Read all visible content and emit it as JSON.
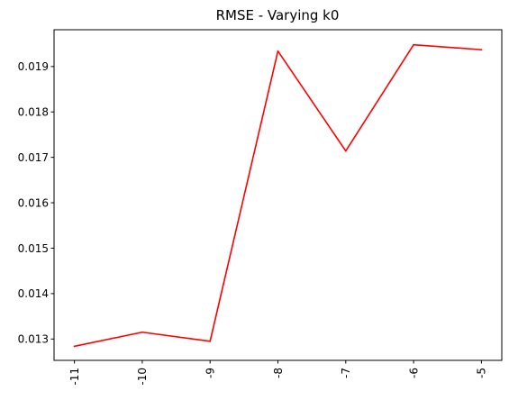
{
  "chart_data": {
    "type": "line",
    "title": "RMSE - Varying k0",
    "xlabel": "",
    "ylabel": "",
    "categories": [
      "-11",
      "-10",
      "-9",
      "-8",
      "-7",
      "-6",
      "-5"
    ],
    "series": [
      {
        "color": "#ff0000",
        "values": [
          0.01284,
          0.01315,
          0.01295,
          0.01934,
          0.01714,
          0.01948,
          0.01937
        ]
      }
    ],
    "ylim": [
      0.01253,
      0.01981
    ],
    "yticks": [
      "0.013",
      "0.014",
      "0.015",
      "0.016",
      "0.017",
      "0.018",
      "0.019"
    ],
    "grid": false,
    "legend": "none"
  }
}
